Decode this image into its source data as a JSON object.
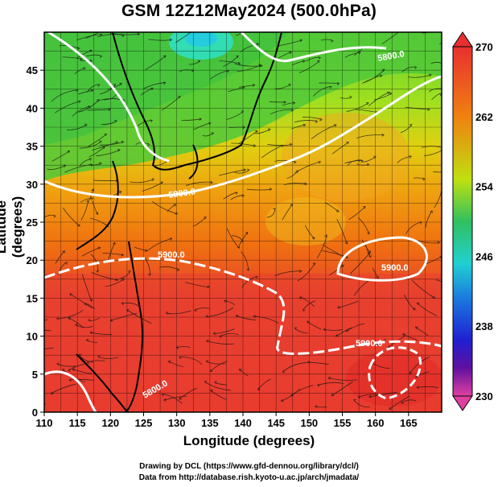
{
  "title": "GSM 12Z12May2024 (500.0hPa)",
  "xlabel": "Longitude (degrees)",
  "ylabel": "Latitude (degrees)",
  "credits": {
    "line1": "Drawing by DCL (https://www.gfd-dennou.org/library/dcl/)",
    "line2": "Data from http://database.rish.kyoto-u.ac.jp/arch/jmadata/"
  },
  "axes": {
    "x_ticks": [
      "110",
      "115",
      "120",
      "125",
      "130",
      "135",
      "140",
      "145",
      "150",
      "155",
      "160",
      "165"
    ],
    "y_ticks": [
      "0",
      "5",
      "10",
      "15",
      "20",
      "25",
      "30",
      "35",
      "40",
      "45"
    ],
    "xlim": [
      110,
      170
    ],
    "ylim": [
      0,
      50
    ]
  },
  "colorbar": {
    "labels": [
      "270",
      "262",
      "254",
      "246",
      "238",
      "230"
    ],
    "range": [
      230,
      270
    ],
    "colors": [
      "#e040a0",
      "#6010a0",
      "#2020d0",
      "#1a7ae0",
      "#20d0d0",
      "#30c060",
      "#70d020",
      "#c0e010",
      "#f0c000",
      "#f08010",
      "#f04020",
      "#e83030"
    ]
  },
  "contour_labels": [
    "5900.0",
    "5800.0",
    "5900.0",
    "5800.0",
    "5900.0",
    "5800.0"
  ],
  "map_colors": {
    "north": "#40c040",
    "mid": "#f0a010",
    "south": "#e84030",
    "cyan": "#30e0c0",
    "coast": "#000000",
    "contour": "#ffffff"
  }
}
